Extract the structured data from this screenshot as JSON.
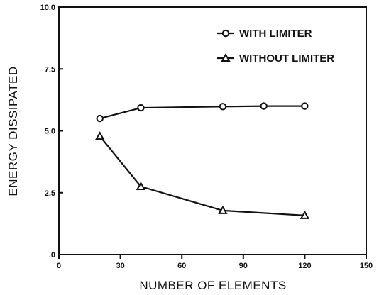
{
  "chart_data": {
    "type": "line",
    "xlabel": "NUMBER OF ELEMENTS",
    "ylabel": "ENERGY DISSIPATED",
    "xlim": [
      0,
      150
    ],
    "ylim": [
      0,
      10
    ],
    "xticks": [
      "0",
      "30",
      "60",
      "90",
      "120",
      "150"
    ],
    "yticks": [
      ".0",
      "2.5",
      "5.0",
      "7.5",
      "10.0"
    ],
    "legend_position": "top-right",
    "grid": false,
    "series": [
      {
        "name": "WITH LIMITER",
        "marker": "circle",
        "x": [
          20,
          40,
          80,
          100,
          120
        ],
        "y": [
          5.5,
          5.93,
          5.98,
          6.0,
          6.0
        ]
      },
      {
        "name": "WITHOUT LIMITER",
        "marker": "triangle",
        "x": [
          20,
          40,
          80,
          120
        ],
        "y": [
          4.78,
          2.75,
          1.78,
          1.58
        ]
      }
    ]
  }
}
